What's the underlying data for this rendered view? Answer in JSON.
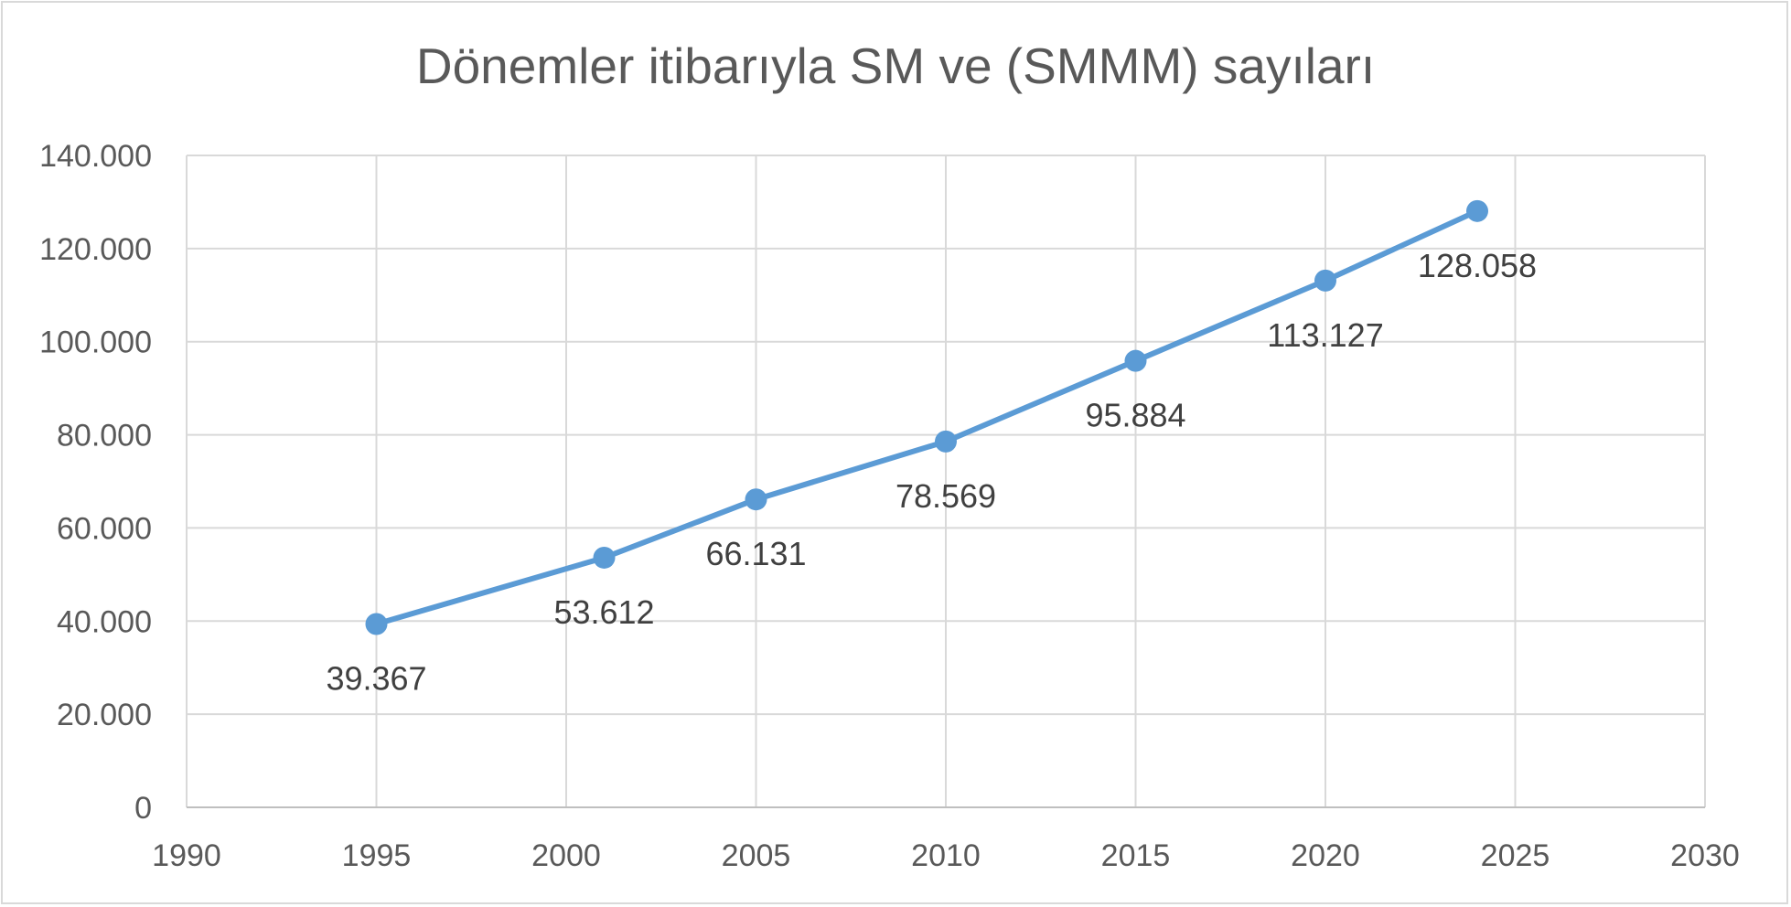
{
  "chart_data": {
    "type": "scatter",
    "title": "Dönemler itibarıyla SM ve (SMMM) sayıları",
    "xlabel": "",
    "ylabel": "",
    "xlim": [
      1990,
      2030
    ],
    "ylim": [
      0,
      140000
    ],
    "x_ticks": [
      1990,
      1995,
      2000,
      2005,
      2010,
      2015,
      2020,
      2025,
      2030
    ],
    "x_tick_labels": [
      "1990",
      "1995",
      "2000",
      "2005",
      "2010",
      "2015",
      "2020",
      "2025",
      "2030"
    ],
    "y_ticks": [
      0,
      20000,
      40000,
      60000,
      80000,
      100000,
      120000,
      140000
    ],
    "y_tick_labels": [
      "0",
      "20.000",
      "40.000",
      "60.000",
      "80.000",
      "100.000",
      "120.000",
      "140.000"
    ],
    "grid": true,
    "legend": "none",
    "series": [
      {
        "color": "#5b9bd5",
        "x": [
          1995,
          2001,
          2005,
          2010,
          2015,
          2020,
          2024
        ],
        "y": [
          39367,
          53612,
          66131,
          78569,
          95884,
          113127,
          128058
        ],
        "labels": [
          "39.367",
          "53.612",
          "66.131",
          "78.569",
          "95.884",
          "113.127",
          "128.058"
        ]
      }
    ]
  }
}
